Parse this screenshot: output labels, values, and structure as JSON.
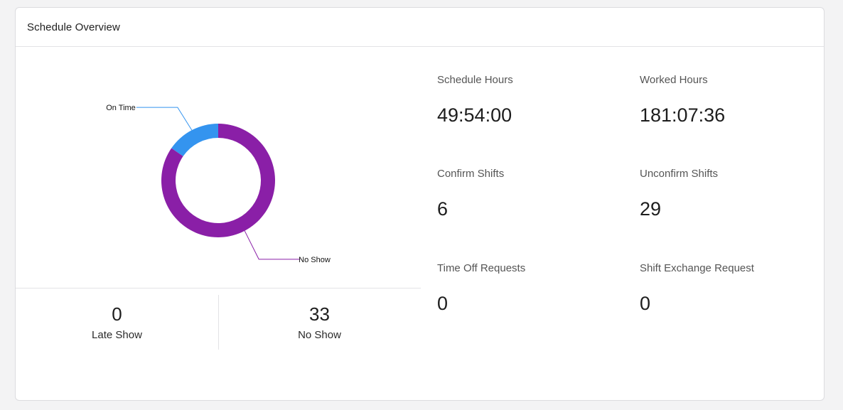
{
  "card": {
    "title": "Schedule Overview"
  },
  "chart_data": {
    "type": "pie",
    "categories": [
      "On Time",
      "No Show"
    ],
    "values": [
      6,
      33
    ],
    "colors": [
      "#3494ef",
      "#8a1fa7"
    ],
    "labels": [
      "On Time",
      "No Show"
    ],
    "donut": true,
    "legend": "none"
  },
  "bottom_stats": [
    {
      "value": "0",
      "label": "Late Show"
    },
    {
      "value": "33",
      "label": "No Show"
    }
  ],
  "stats": [
    {
      "label": "Schedule Hours",
      "value": "49:54:00"
    },
    {
      "label": "Worked Hours",
      "value": "181:07:36"
    },
    {
      "label": "Confirm Shifts",
      "value": "6"
    },
    {
      "label": "Unconfirm Shifts",
      "value": "29"
    },
    {
      "label": "Time Off Requests",
      "value": "0"
    },
    {
      "label": "Shift Exchange Request",
      "value": "0"
    }
  ]
}
